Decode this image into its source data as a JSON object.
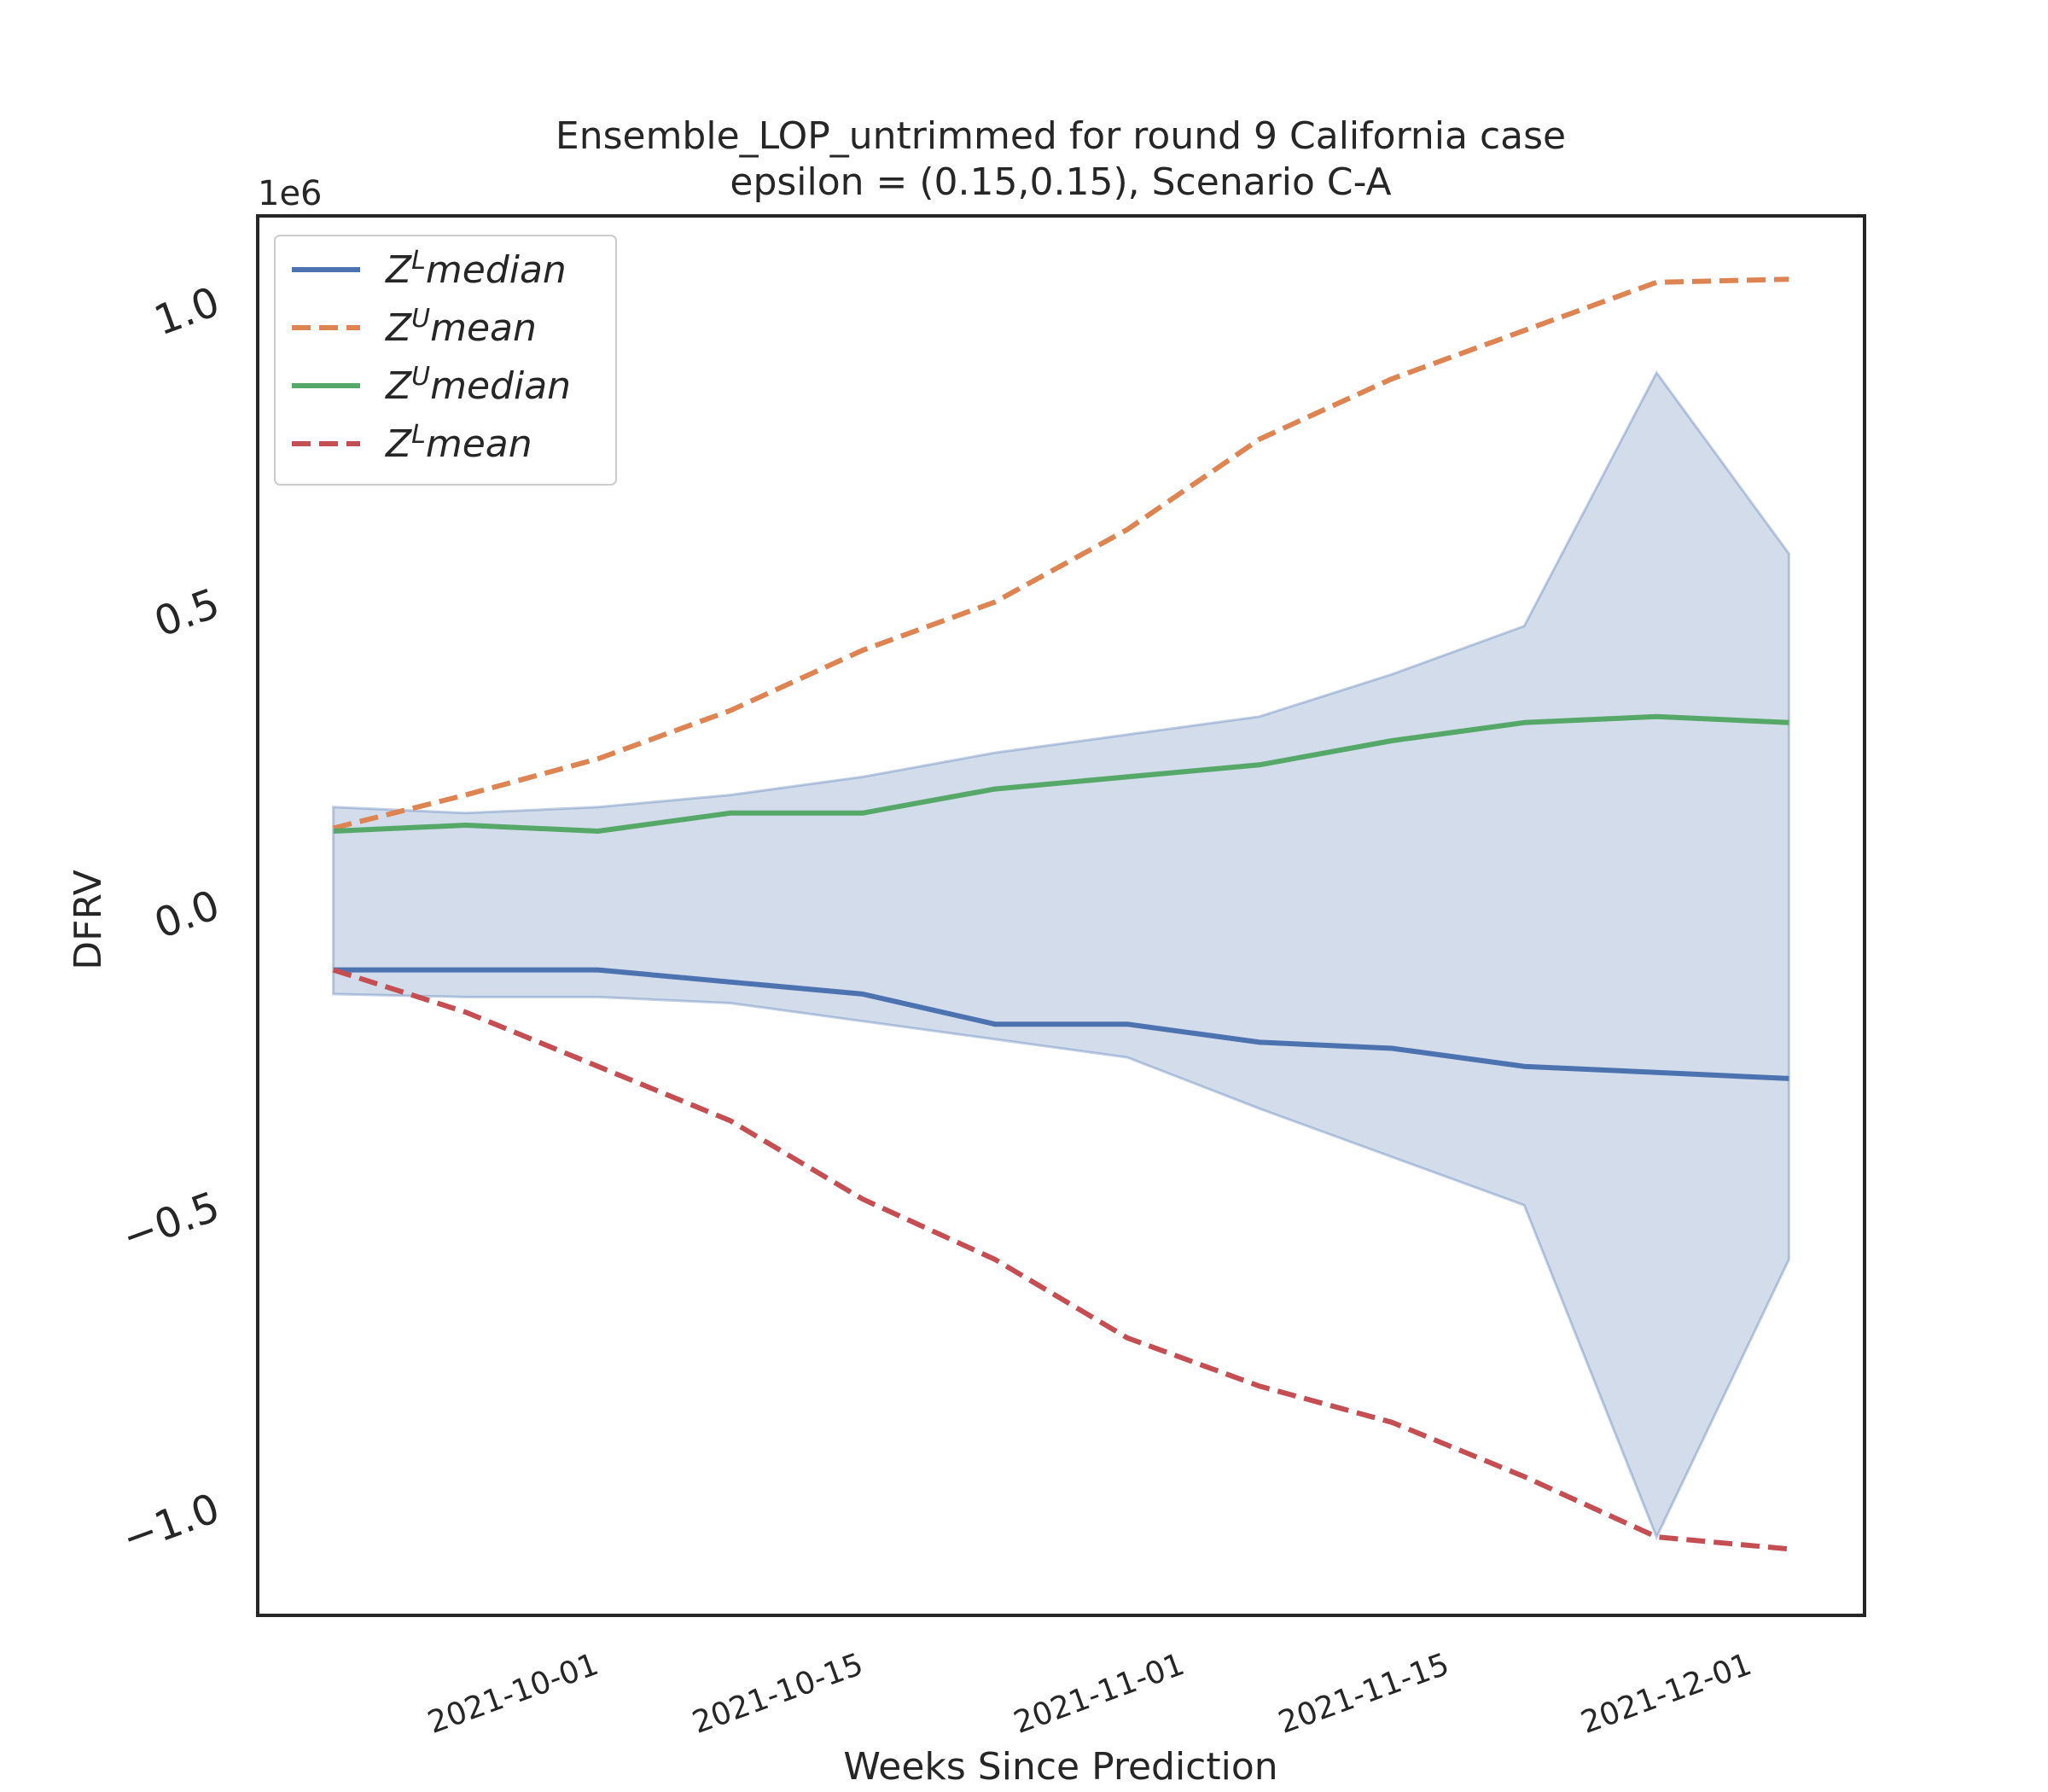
{
  "chart_data": {
    "type": "line",
    "title": "Ensemble_LOP_untrimmed for round 9 California  case",
    "subtitle": "epsilon = (0.15,0.15), Scenario C-A",
    "xlabel": "Weeks Since Prediction",
    "ylabel": "DFRV",
    "y_offset_text": "1e6",
    "grid": false,
    "legend_position": "upper-left",
    "x": [
      "2021-09-18",
      "2021-09-25",
      "2021-10-02",
      "2021-10-09",
      "2021-10-16",
      "2021-10-23",
      "2021-10-30",
      "2021-11-06",
      "2021-11-13",
      "2021-11-20",
      "2021-11-27",
      "2021-12-04"
    ],
    "x_ticks": [
      "2021-10-01",
      "2021-10-15",
      "2021-11-01",
      "2021-11-15",
      "2021-12-01"
    ],
    "x_range": [
      "2021-09-14",
      "2021-12-08"
    ],
    "y_ticks": [
      {
        "value": -1000000,
        "label": "−1.0"
      },
      {
        "value": -500000,
        "label": "−0.5"
      },
      {
        "value": 0,
        "label": "0.0"
      },
      {
        "value": 500000,
        "label": "0.5"
      },
      {
        "value": 1000000,
        "label": "1.0"
      }
    ],
    "ylim": [
      -1180000,
      1140000
    ],
    "series": [
      {
        "name": "Z^L median",
        "label_base": "Z",
        "label_sup": "L",
        "label_suffix": "median",
        "color": "#4c72b0",
        "dash": false,
        "values": [
          -110000,
          -110000,
          -110000,
          -130000,
          -150000,
          -200000,
          -200000,
          -230000,
          -240000,
          -270000,
          -280000,
          -290000
        ]
      },
      {
        "name": "Z^U mean",
        "label_base": "Z",
        "label_sup": "U",
        "label_suffix": "mean",
        "color": "#dd8452",
        "dash": true,
        "values": [
          125000,
          180000,
          240000,
          320000,
          420000,
          500000,
          620000,
          770000,
          870000,
          950000,
          1030000,
          1035000
        ]
      },
      {
        "name": "Z^U median",
        "label_base": "Z",
        "label_sup": "U",
        "label_suffix": "median",
        "color": "#55a868",
        "dash": false,
        "values": [
          120000,
          130000,
          120000,
          150000,
          150000,
          190000,
          210000,
          230000,
          270000,
          300000,
          310000,
          300000
        ]
      },
      {
        "name": "Z^L mean",
        "label_base": "Z",
        "label_sup": "L",
        "label_suffix": "mean",
        "color": "#c44e52",
        "dash": true,
        "values": [
          -110000,
          -180000,
          -270000,
          -360000,
          -490000,
          -590000,
          -720000,
          -800000,
          -860000,
          -950000,
          -1050000,
          -1070000
        ]
      }
    ],
    "band": {
      "color": "#4c72b0",
      "opacity": 0.25,
      "upper": [
        160000,
        150000,
        160000,
        180000,
        210000,
        250000,
        280000,
        310000,
        380000,
        460000,
        880000,
        580000
      ],
      "lower": [
        -150000,
        -155000,
        -155000,
        -165000,
        -195000,
        -225000,
        -255000,
        -340000,
        -420000,
        -500000,
        -1050000,
        -590000
      ]
    }
  }
}
